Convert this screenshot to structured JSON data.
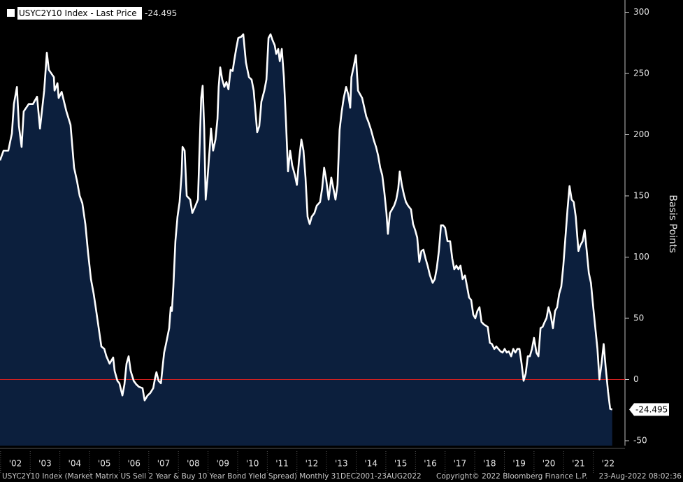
{
  "chart_data": {
    "type": "area",
    "series": [
      {
        "name": "USYC2Y10 Index - Last Price",
        "color": "#ffffff",
        "fill": "#0c1f3d",
        "x": [
          2001.98,
          2002.1,
          2002.26,
          2002.38,
          2002.45,
          2002.55,
          2002.62,
          2002.71,
          2002.78,
          2002.95,
          2003.09,
          2003.23,
          2003.33,
          2003.47,
          2003.56,
          2003.63,
          2003.8,
          2003.82,
          2003.92,
          2003.96,
          2004.06,
          2004.22,
          2004.36,
          2004.48,
          2004.58,
          2004.67,
          2004.76,
          2004.86,
          2004.95,
          2005.05,
          2005.14,
          2005.21,
          2005.31,
          2005.4,
          2005.5,
          2005.57,
          2005.68,
          2005.8,
          2005.85,
          2005.94,
          2006.01,
          2006.11,
          2006.18,
          2006.25,
          2006.32,
          2006.39,
          2006.49,
          2006.58,
          2006.67,
          2006.79,
          2006.86,
          2006.96,
          2007.05,
          2007.15,
          2007.22,
          2007.26,
          2007.33,
          2007.41,
          2007.48,
          2007.52,
          2007.59,
          2007.69,
          2007.74,
          2007.78,
          2007.83,
          2007.9,
          2007.97,
          2008.04,
          2008.11,
          2008.14,
          2008.21,
          2008.28,
          2008.4,
          2008.47,
          2008.56,
          2008.66,
          2008.7,
          2008.77,
          2008.82,
          2008.87,
          2008.92,
          2008.99,
          2009.06,
          2009.1,
          2009.17,
          2009.25,
          2009.32,
          2009.36,
          2009.41,
          2009.48,
          2009.55,
          2009.62,
          2009.69,
          2009.76,
          2009.83,
          2009.88,
          2009.95,
          2010.02,
          2010.12,
          2010.19,
          2010.28,
          2010.38,
          2010.47,
          2010.54,
          2010.66,
          2010.73,
          2010.8,
          2010.9,
          2010.97,
          2011.04,
          2011.11,
          2011.18,
          2011.25,
          2011.3,
          2011.37,
          2011.42,
          2011.49,
          2011.56,
          2011.63,
          2011.7,
          2011.77,
          2011.84,
          2011.93,
          2012.0,
          2012.07,
          2012.15,
          2012.22,
          2012.29,
          2012.36,
          2012.43,
          2012.5,
          2012.59,
          2012.67,
          2012.78,
          2012.85,
          2012.92,
          2012.99,
          2013.07,
          2013.16,
          2013.23,
          2013.3,
          2013.37,
          2013.44,
          2013.51,
          2013.58,
          2013.66,
          2013.73,
          2013.8,
          2013.84,
          2013.92,
          2013.99,
          2014.06,
          2014.2,
          2014.34,
          2014.42,
          2014.5,
          2014.6,
          2014.67,
          2014.74,
          2014.81,
          2014.88,
          2014.95,
          2015.02,
          2015.07,
          2015.14,
          2015.21,
          2015.28,
          2015.35,
          2015.42,
          2015.47,
          2015.54,
          2015.61,
          2015.68,
          2015.75,
          2015.85,
          2015.92,
          2015.99,
          2016.06,
          2016.13,
          2016.2,
          2016.27,
          2016.34,
          2016.41,
          2016.49,
          2016.58,
          2016.65,
          2016.72,
          2016.79,
          2016.86,
          2016.93,
          2017.0,
          2017.08,
          2017.17,
          2017.24,
          2017.31,
          2017.38,
          2017.45,
          2017.52,
          2017.59,
          2017.67,
          2017.74,
          2017.81,
          2017.88,
          2017.95,
          2018.02,
          2018.09,
          2018.16,
          2018.23,
          2018.31,
          2018.44,
          2018.51,
          2018.58,
          2018.66,
          2018.73,
          2018.8,
          2018.87,
          2018.94,
          2019.01,
          2019.08,
          2019.15,
          2019.23,
          2019.3,
          2019.37,
          2019.44,
          2019.51,
          2019.58,
          2019.65,
          2019.72,
          2019.79,
          2019.86,
          2019.93,
          2020.0,
          2020.08,
          2020.15,
          2020.22,
          2020.29,
          2020.36,
          2020.42,
          2020.49,
          2020.56,
          2020.64,
          2020.71,
          2020.78,
          2020.85,
          2020.92,
          2020.99,
          2021.06,
          2021.13,
          2021.2,
          2021.27,
          2021.34,
          2021.41,
          2021.5,
          2021.57,
          2021.64,
          2021.71,
          2021.78,
          2021.85,
          2021.92,
          2022.0,
          2022.07,
          2022.14,
          2022.21,
          2022.28,
          2022.35,
          2022.42,
          2022.5,
          2022.57,
          2022.64
        ],
        "values": [
          179,
          187,
          187,
          201,
          225,
          239,
          207,
          190,
          219,
          225,
          225,
          231,
          205,
          236,
          267,
          253,
          247,
          236,
          242,
          230,
          235,
          219,
          208,
          173,
          162,
          150,
          144,
          127,
          104,
          82,
          70,
          59,
          42,
          27,
          25,
          19,
          13,
          18,
          7,
          -1,
          -3,
          -13,
          -4,
          13,
          19,
          7,
          -1,
          -4,
          -6,
          -7,
          -17,
          -13,
          -11,
          -7,
          2,
          6,
          -1,
          -3,
          13,
          22,
          30,
          42,
          59,
          56,
          76,
          113,
          133,
          145,
          168,
          190,
          187,
          150,
          147,
          136,
          141,
          147,
          179,
          230,
          240,
          205,
          147,
          167,
          190,
          205,
          187,
          196,
          213,
          239,
          255,
          245,
          239,
          243,
          237,
          253,
          252,
          260,
          270,
          279,
          280,
          282,
          259,
          247,
          245,
          236,
          202,
          207,
          227,
          236,
          245,
          279,
          282,
          277,
          273,
          266,
          270,
          260,
          270,
          247,
          210,
          170,
          187,
          175,
          167,
          159,
          179,
          196,
          187,
          165,
          133,
          127,
          133,
          136,
          142,
          145,
          156,
          173,
          163,
          147,
          165,
          156,
          147,
          159,
          204,
          219,
          230,
          239,
          233,
          222,
          247,
          256,
          265,
          236,
          230,
          215,
          210,
          204,
          195,
          190,
          183,
          173,
          167,
          153,
          136,
          119,
          136,
          139,
          142,
          147,
          156,
          170,
          159,
          151,
          145,
          142,
          139,
          127,
          122,
          116,
          96,
          105,
          106,
          99,
          93,
          85,
          79,
          82,
          91,
          105,
          126,
          126,
          124,
          113,
          113,
          99,
          90,
          93,
          90,
          93,
          82,
          85,
          76,
          67,
          65,
          53,
          50,
          56,
          59,
          47,
          45,
          43,
          30,
          29,
          25,
          27,
          25,
          23,
          22,
          25,
          22,
          23,
          19,
          25,
          22,
          25,
          25,
          13,
          -1,
          5,
          19,
          19,
          25,
          34,
          22,
          19,
          42,
          43,
          47,
          50,
          59,
          53,
          42,
          56,
          59,
          70,
          76,
          93,
          116,
          139,
          158,
          147,
          145,
          133,
          105,
          110,
          113,
          122,
          105,
          87,
          79,
          59,
          42,
          25,
          0,
          13,
          29,
          10,
          -10,
          -24,
          -24.495
        ]
      }
    ],
    "xlim": [
      2001.98,
      2023.07
    ],
    "xticks": [
      {
        "value": 2002,
        "label": "'02"
      },
      {
        "value": 2003,
        "label": "'03"
      },
      {
        "value": 2004,
        "label": "'04"
      },
      {
        "value": 2005,
        "label": "'05"
      },
      {
        "value": 2006,
        "label": "'06"
      },
      {
        "value": 2007,
        "label": "'07"
      },
      {
        "value": 2008,
        "label": "'08"
      },
      {
        "value": 2009,
        "label": "'09"
      },
      {
        "value": 2010,
        "label": "'10"
      },
      {
        "value": 2011,
        "label": "'11"
      },
      {
        "value": 2012,
        "label": "'12"
      },
      {
        "value": 2013,
        "label": "'13"
      },
      {
        "value": 2014,
        "label": "'14"
      },
      {
        "value": 2015,
        "label": "'15"
      },
      {
        "value": 2016,
        "label": "'16"
      },
      {
        "value": 2017,
        "label": "'17"
      },
      {
        "value": 2018,
        "label": "'18"
      },
      {
        "value": 2019,
        "label": "'19"
      },
      {
        "value": 2020,
        "label": "'20"
      },
      {
        "value": 2021,
        "label": "'21"
      },
      {
        "value": 2022,
        "label": "'22"
      }
    ],
    "ylim": [
      -54,
      310
    ],
    "yticks": [
      -50,
      0,
      50,
      100,
      150,
      200,
      250,
      300
    ],
    "ylabel": "Basis Points",
    "zero_line_color": "#d02020",
    "footer": {
      "description": "USYC2Y10 Index (Market Matrix US Sell 2 Year & Buy 10 Year Bond Yield Spread)  Monthly 31DEC2001-23AUG2022",
      "copyright": "Copyright© 2022 Bloomberg Finance L.P.",
      "timestamp": "23-Aug-2022 08:02:36"
    }
  }
}
